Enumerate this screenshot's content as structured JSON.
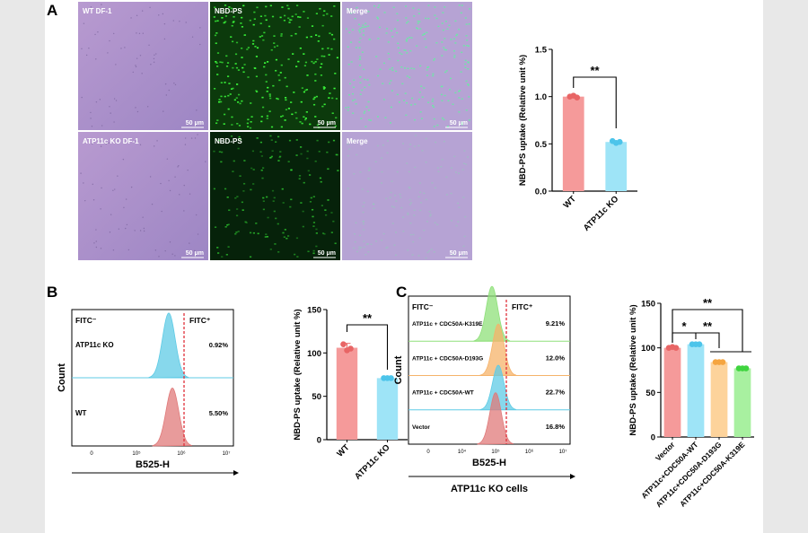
{
  "panels": {
    "A": {
      "label": "A",
      "micrographs": [
        {
          "caption": "WT DF-1",
          "scale": "50 μm",
          "kind": "bright"
        },
        {
          "caption": "NBD-PS",
          "scale": "50 μm",
          "kind": "green_dense"
        },
        {
          "caption": "Merge",
          "scale": "50 μm",
          "kind": "merge_dense"
        },
        {
          "caption": "ATP11c KO DF-1",
          "scale": "50 μm",
          "kind": "bright"
        },
        {
          "caption": "NBD-PS",
          "scale": "50 μm",
          "kind": "green_sparse"
        },
        {
          "caption": "Merge",
          "scale": "50 μm",
          "kind": "merge_sparse"
        }
      ]
    },
    "B": {
      "label": "B",
      "flow": {
        "gate_left": "FITC⁻",
        "gate_right": "FITC⁺",
        "ylabel": "Count",
        "xlabel": "B525-H",
        "tick_labels": [
          "0",
          "10⁵",
          "10⁶",
          "10⁷"
        ],
        "tracks": [
          {
            "name": "ATP11c KO",
            "percent": "0.92%",
            "color": "#5fcbe5"
          },
          {
            "name": "WT",
            "percent": "5.50%",
            "color": "#e07a7a"
          }
        ]
      }
    },
    "C": {
      "label": "C",
      "flow": {
        "gate_left": "FITC⁻",
        "gate_right": "FITC⁺",
        "ylabel": "Count",
        "xlabel": "B525-H",
        "sublabel": "ATP11c KO cells",
        "tick_labels": [
          "0",
          "10⁴",
          "10⁵",
          "10⁶",
          "10⁷"
        ],
        "tracks": [
          {
            "name": "ATP11c + CDC50A-K319E",
            "percent": "9.21%",
            "color": "#8fe07a"
          },
          {
            "name": "ATP11c + CDC50A-D193G",
            "percent": "12.0%",
            "color": "#f5b36a"
          },
          {
            "name": "ATP11c + CDC50A-WT",
            "percent": "22.7%",
            "color": "#5fcbe5"
          },
          {
            "name": "Vector",
            "percent": "16.8%",
            "color": "#e07a7a"
          }
        ]
      }
    }
  },
  "chart_data": [
    {
      "panel": "A",
      "type": "bar",
      "ylabel": "NBD-PS uptake (Relative unit %)",
      "categories": [
        "WT",
        "ATP11c KO"
      ],
      "values": [
        1.0,
        0.52
      ],
      "points": [
        [
          1.0,
          1.01,
          0.99
        ],
        [
          0.53,
          0.51,
          0.52
        ]
      ],
      "ylim": [
        0,
        1.5
      ],
      "yticks": [
        "0.0",
        "0.5",
        "1.0",
        "1.5"
      ],
      "bar_colors": [
        "#f59a9a",
        "#9ee4f7"
      ],
      "point_colors": [
        "#e86565",
        "#4cc4ea"
      ],
      "significance": [
        {
          "between": [
            0,
            1
          ],
          "label": "**"
        }
      ]
    },
    {
      "panel": "B",
      "type": "bar",
      "ylabel": "NBD-PS uptake (Relative unit %)",
      "categories": [
        "WT",
        "ATP11c KO"
      ],
      "values": [
        106,
        71
      ],
      "points": [
        [
          110,
          103,
          105
        ],
        [
          71,
          71,
          71
        ]
      ],
      "error": [
        5,
        1
      ],
      "ylim": [
        0,
        150
      ],
      "yticks": [
        "0",
        "50",
        "100",
        "150"
      ],
      "bar_colors": [
        "#f59a9a",
        "#9ee4f7"
      ],
      "point_colors": [
        "#e86565",
        "#4cc4ea"
      ],
      "significance": [
        {
          "between": [
            0,
            1
          ],
          "label": "**"
        }
      ]
    },
    {
      "panel": "C",
      "type": "bar",
      "ylabel": "NBD-PS uptake (Relative unit %)",
      "categories": [
        "Vector",
        "ATP11c+CDC50A-WT",
        "ATP11c+CDC50A-D193G",
        "ATP11c+CDC50A-K319E"
      ],
      "values": [
        100,
        104,
        84,
        77
      ],
      "points": [
        [
          100,
          101,
          100
        ],
        [
          104,
          104,
          104
        ],
        [
          84,
          84,
          84
        ],
        [
          77,
          77,
          77
        ]
      ],
      "ylim": [
        0,
        150
      ],
      "yticks": [
        "0",
        "50",
        "100",
        "150"
      ],
      "bar_colors": [
        "#f59a9a",
        "#9ee4f7",
        "#fdd39b",
        "#a8f0a0"
      ],
      "point_colors": [
        "#e86565",
        "#4cc4ea",
        "#f5a540",
        "#3fd43f"
      ],
      "significance": [
        {
          "between": [
            0,
            1
          ],
          "label": "*"
        },
        {
          "between": [
            1,
            2
          ],
          "label": "**"
        },
        {
          "between": [
            0,
            3
          ],
          "label": "**"
        }
      ]
    }
  ]
}
